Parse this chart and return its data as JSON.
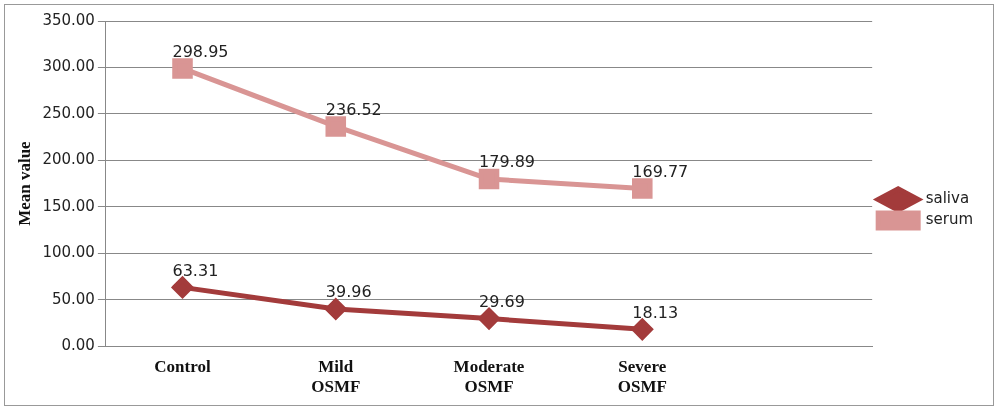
{
  "chart_data": {
    "type": "line",
    "ylabel": "Mean value",
    "categories": [
      "Control",
      "Mild OSMF",
      "Moderate OSMF",
      "Severe OSMF",
      null
    ],
    "series": [
      {
        "name": "saliva",
        "color": "#a33b3b",
        "marker": "diamond",
        "values": [
          63.31,
          39.96,
          29.69,
          18.13,
          null
        ]
      },
      {
        "name": "serum",
        "color": "#d99594",
        "marker": "square",
        "values": [
          298.95,
          236.52,
          179.89,
          169.77,
          null
        ]
      }
    ],
    "ylim": [
      0,
      350
    ],
    "yticks": [
      {
        "value": 0,
        "label": "0.00"
      },
      {
        "value": 50,
        "label": "50.00"
      },
      {
        "value": 100,
        "label": "100.00"
      },
      {
        "value": 150,
        "label": "150.00"
      },
      {
        "value": 200,
        "label": "200.00"
      },
      {
        "value": 250,
        "label": "250.00"
      },
      {
        "value": 300,
        "label": "300.00"
      },
      {
        "value": 350,
        "label": "350.00"
      }
    ],
    "grid": "y",
    "legend": "right",
    "data_labels": true
  }
}
